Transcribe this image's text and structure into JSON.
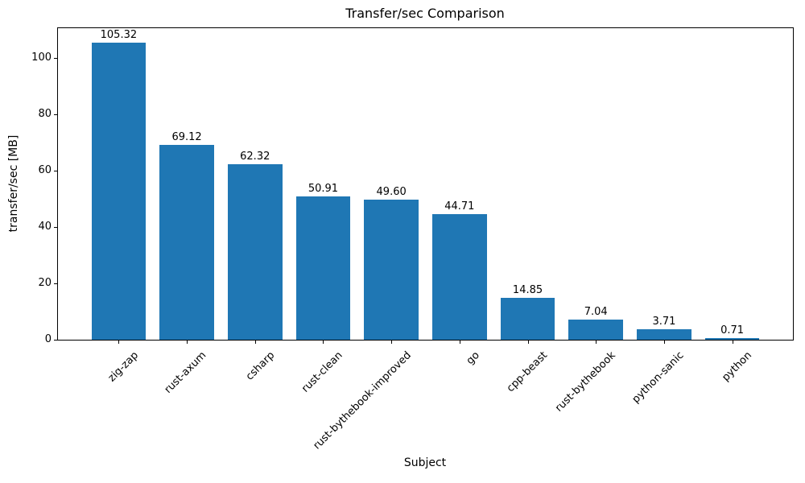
{
  "chart_data": {
    "type": "bar",
    "title": "Transfer/sec Comparison",
    "xlabel": "Subject",
    "ylabel": "transfer/sec [MB]",
    "categories": [
      "zig-zap",
      "rust-axum",
      "csharp",
      "rust-clean",
      "rust-bythebook-improved",
      "go",
      "cpp-beast",
      "rust-bythebook",
      "python-sanic",
      "python"
    ],
    "values": [
      105.32,
      69.12,
      62.32,
      50.91,
      49.6,
      44.71,
      14.85,
      7.04,
      3.71,
      0.71
    ],
    "value_labels": [
      "105.32",
      "69.12",
      "62.32",
      "50.91",
      "49.60",
      "44.71",
      "14.85",
      "7.04",
      "3.71",
      "0.71"
    ],
    "yticks": [
      0,
      20,
      40,
      60,
      80,
      100
    ],
    "ytick_labels": [
      "0",
      "20",
      "40",
      "60",
      "80",
      "100"
    ],
    "ylim": [
      0,
      110.6
    ],
    "bar_color": "#1f77b4",
    "grid": false,
    "legend_position": "none",
    "x_tick_rotation_deg": 45
  }
}
